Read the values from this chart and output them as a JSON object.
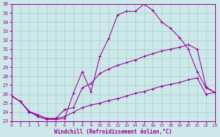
{
  "xlabel": "Windchill (Refroidissement éolien,°C)",
  "bg_color": "#cce8e8",
  "line_color": "#990099",
  "grid_color": "#aacccc",
  "ylim": [
    23,
    36
  ],
  "xlim": [
    0,
    23
  ],
  "yticks": [
    23,
    24,
    25,
    26,
    27,
    28,
    29,
    30,
    31,
    32,
    33,
    34,
    35,
    36
  ],
  "xticks": [
    0,
    1,
    2,
    3,
    4,
    5,
    6,
    7,
    8,
    9,
    10,
    11,
    12,
    13,
    14,
    15,
    16,
    17,
    18,
    19,
    20,
    21,
    22,
    23
  ],
  "line1_x": [
    0,
    1,
    2,
    3,
    4,
    5,
    6,
    7,
    8,
    9,
    10,
    11,
    12,
    13,
    14,
    15,
    16,
    17,
    18,
    19,
    20,
    21,
    22,
    23
  ],
  "line1_y": [
    25.8,
    25.2,
    24.1,
    23.5,
    23.2,
    23.2,
    23.3,
    26.1,
    28.5,
    26.3,
    30.2,
    32.2,
    34.8,
    35.2,
    35.2,
    36.0,
    35.3,
    34.0,
    33.3,
    32.3,
    31.0,
    28.5,
    26.7,
    26.2
  ],
  "line2_x": [
    0,
    1,
    2,
    3,
    4,
    5,
    6,
    7,
    8,
    9,
    10,
    11,
    12,
    13,
    14,
    15,
    16,
    17,
    18,
    19,
    20,
    21,
    22,
    23
  ],
  "line2_y": [
    25.8,
    25.2,
    24.1,
    23.7,
    23.3,
    23.3,
    24.3,
    24.5,
    26.7,
    27.2,
    28.3,
    28.8,
    29.2,
    29.5,
    29.8,
    30.2,
    30.5,
    30.8,
    31.0,
    31.2,
    31.5,
    31.0,
    26.8,
    26.2
  ],
  "line3_x": [
    0,
    1,
    2,
    3,
    4,
    5,
    6,
    7,
    8,
    9,
    10,
    11,
    12,
    13,
    14,
    15,
    16,
    17,
    18,
    19,
    20,
    21,
    22,
    23
  ],
  "line3_y": [
    25.8,
    25.2,
    24.0,
    23.7,
    23.3,
    23.3,
    23.5,
    24.0,
    24.5,
    24.8,
    25.0,
    25.3,
    25.5,
    25.8,
    26.1,
    26.3,
    26.6,
    26.9,
    27.1,
    27.3,
    27.6,
    27.8,
    26.0,
    26.2
  ]
}
